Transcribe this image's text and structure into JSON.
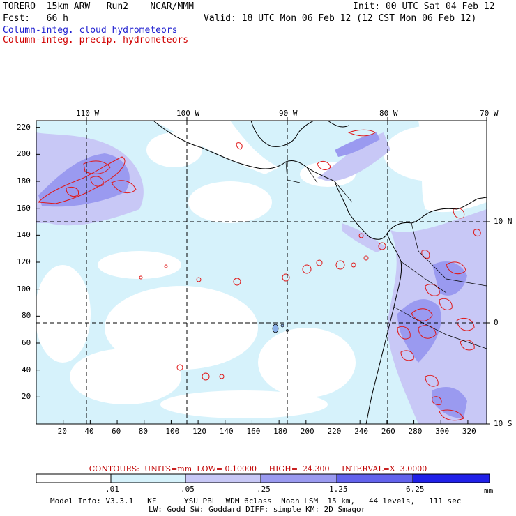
{
  "header": {
    "model": "TORERO  15km ARW   Run2    NCAR/MMM",
    "init": "Init: 00 UTC Sat 04 Feb 12",
    "fcst": "Fcst:   66 h",
    "valid": "Valid: 18 UTC Mon 06 Feb 12 (12 CST Mon 06 Feb 12)",
    "field1": "Column-integ. cloud hydrometeors",
    "field2": "Column-integ. precip. hydrometeors"
  },
  "colors": {
    "field1": "#2020d0",
    "field2": "#d00000",
    "shade": [
      "#ffffff",
      "#d6f2fb",
      "#c8c8f6",
      "#9a9af0",
      "#6262ec",
      "#2020e8"
    ],
    "contour": "#e01818"
  },
  "map": {
    "lon_labels": [
      "110 W",
      "100 W",
      "90 W",
      "80 W",
      "70 W"
    ],
    "lat_labels": [
      "10 N",
      "0",
      "10 S"
    ],
    "x_ticks": [
      "20",
      "40",
      "60",
      "80",
      "100",
      "120",
      "140",
      "160",
      "180",
      "200",
      "220",
      "240",
      "260",
      "280",
      "300",
      "320"
    ],
    "y_ticks": [
      "20",
      "40",
      "60",
      "80",
      "100",
      "120",
      "140",
      "160",
      "180",
      "200",
      "220"
    ]
  },
  "contours_line": "CONTOURS:  UNITS=mm  LOW= 0.10000     HIGH=  24.300     INTERVAL=X  3.0000",
  "colorbar": {
    "labels": [
      ".01",
      ".05",
      ".25",
      "1.25",
      "6.25"
    ],
    "units": "mm"
  },
  "footer": {
    "line1": "Model Info: V3.3.1   KF      YSU PBL  WDM 6class  Noah LSM  15 km,   44 levels,   111 sec",
    "line2": "LW: Godd SW: Goddard DIFF: simple KM: 2D Smagor"
  }
}
